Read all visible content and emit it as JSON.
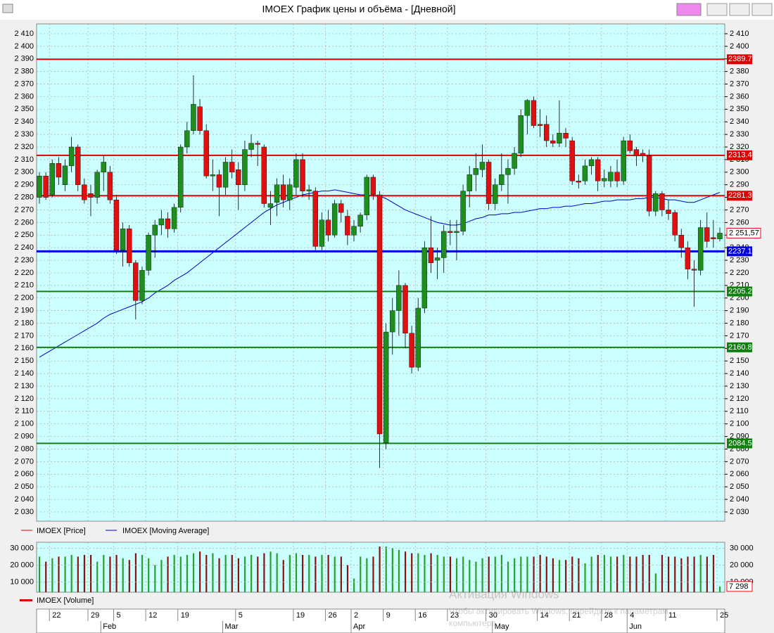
{
  "window_title": "IMOEX График цены и объёма - [Дневной]",
  "watermark": [
    "Активация Windows",
    "Чтобы активировать Windows, перейдите к параметрам",
    "компьютера."
  ],
  "chart_data": {
    "type": "candlestick",
    "price_name": "IMOEX [Price]",
    "price_color": "#e00000",
    "up_color": "#1e8f1e",
    "down_color": "#e01010",
    "grid": true,
    "ylim": [
      2022.7,
      2417.8
    ],
    "yticks": [
      {
        "value": 2030,
        "label": "2 030"
      },
      {
        "value": 2040,
        "label": "2 040"
      },
      {
        "value": 2050,
        "label": "2 050"
      },
      {
        "value": 2060,
        "label": "2 060"
      },
      {
        "value": 2070,
        "label": "2 070"
      },
      {
        "value": 2080,
        "label": "2 080"
      },
      {
        "value": 2090,
        "label": "2 090"
      },
      {
        "value": 2100,
        "label": "2 100"
      },
      {
        "value": 2110,
        "label": "2 110"
      },
      {
        "value": 2120,
        "label": "2 120"
      },
      {
        "value": 2130,
        "label": "2 130"
      },
      {
        "value": 2140,
        "label": "2 140"
      },
      {
        "value": 2150,
        "label": "2 150"
      },
      {
        "value": 2160,
        "label": "2 160"
      },
      {
        "value": 2170,
        "label": "2 170"
      },
      {
        "value": 2180,
        "label": "2 180"
      },
      {
        "value": 2190,
        "label": "2 190"
      },
      {
        "value": 2200,
        "label": "2 200"
      },
      {
        "value": 2210,
        "label": "2 210"
      },
      {
        "value": 2220,
        "label": "2 220"
      },
      {
        "value": 2230,
        "label": "2 230"
      },
      {
        "value": 2240,
        "label": "2 240"
      },
      {
        "value": 2250,
        "label": "2 250"
      },
      {
        "value": 2260,
        "label": "2 260"
      },
      {
        "value": 2270,
        "label": "2 270"
      },
      {
        "value": 2280,
        "label": "2 280"
      },
      {
        "value": 2290,
        "label": "2 290"
      },
      {
        "value": 2300,
        "label": "2 300"
      },
      {
        "value": 2310,
        "label": "2 310"
      },
      {
        "value": 2320,
        "label": "2 320"
      },
      {
        "value": 2330,
        "label": "2 330"
      },
      {
        "value": 2340,
        "label": "2 340"
      },
      {
        "value": 2350,
        "label": "2 350"
      },
      {
        "value": 2360,
        "label": "2 360"
      },
      {
        "value": 2370,
        "label": "2 370"
      },
      {
        "value": 2380,
        "label": "2 380"
      },
      {
        "value": 2390,
        "label": "2 390"
      },
      {
        "value": 2400,
        "label": "2 400"
      },
      {
        "value": 2410,
        "label": "2 410"
      }
    ],
    "levels": [
      {
        "value": 2389.7,
        "color": "#e00000"
      },
      {
        "value": 2313.4,
        "color": "#e00000"
      },
      {
        "value": 2281.3,
        "color": "#e00000"
      },
      {
        "value": 2237.1,
        "color": "#0000e0"
      },
      {
        "value": 2205.2,
        "color": "#108010"
      },
      {
        "value": 2160.8,
        "color": "#108010"
      },
      {
        "value": 2084.5,
        "color": "#108010"
      }
    ],
    "last_label": "2 251,57",
    "categories": [
      null,
      null,
      "22",
      null,
      null,
      null,
      null,
      null,
      "29",
      null,
      null,
      null,
      "5",
      null,
      null,
      null,
      null,
      "12",
      null,
      null,
      null,
      null,
      "19",
      null,
      null,
      null,
      null,
      null,
      null,
      null,
      null,
      "5",
      null,
      null,
      null,
      null,
      null,
      null,
      null,
      null,
      "19",
      null,
      null,
      null,
      null,
      "26",
      null,
      null,
      null,
      "2",
      null,
      null,
      null,
      null,
      "9",
      null,
      null,
      null,
      null,
      "16",
      null,
      null,
      null,
      null,
      "23",
      null,
      null,
      null,
      null,
      null,
      "30",
      null,
      null,
      null,
      null,
      null,
      null,
      null,
      "14",
      null,
      null,
      null,
      null,
      "21",
      null,
      null,
      null,
      null,
      "28",
      null,
      null,
      null,
      "4",
      null,
      null,
      null,
      null,
      null,
      "11",
      null,
      null,
      null,
      null,
      null,
      null,
      null,
      "25"
    ],
    "months": [
      null,
      null,
      null,
      null,
      null,
      null,
      null,
      null,
      null,
      null,
      "Feb",
      null,
      null,
      null,
      null,
      null,
      null,
      null,
      null,
      null,
      null,
      null,
      null,
      null,
      null,
      null,
      null,
      null,
      null,
      "Mar",
      null,
      null,
      null,
      null,
      null,
      null,
      null,
      null,
      null,
      null,
      null,
      null,
      null,
      null,
      null,
      null,
      null,
      null,
      null,
      "Apr",
      null,
      null,
      null,
      null,
      null,
      null,
      null,
      null,
      null,
      null,
      null,
      null,
      null,
      null,
      null,
      null,
      null,
      null,
      null,
      null,
      null,
      "May",
      null,
      null,
      null,
      null,
      null,
      null,
      null,
      null,
      null,
      null,
      null,
      null,
      null,
      null,
      null,
      null,
      null,
      null,
      null,
      null,
      "Jun",
      null,
      null,
      null,
      null,
      null,
      null,
      null,
      null,
      null,
      null,
      null,
      null,
      null,
      null,
      null
    ],
    "ohlc": [
      [
        2280,
        2300,
        2275,
        2297
      ],
      [
        2297,
        2300,
        2278,
        2280
      ],
      [
        2282,
        2310,
        2280,
        2307
      ],
      [
        2307,
        2312,
        2290,
        2296
      ],
      [
        2290,
        2310,
        2285,
        2305
      ],
      [
        2305,
        2328,
        2300,
        2320
      ],
      [
        2320,
        2322,
        2285,
        2290
      ],
      [
        2290,
        2295,
        2275,
        2278
      ],
      [
        2283,
        2290,
        2265,
        2280
      ],
      [
        2280,
        2302,
        2275,
        2300
      ],
      [
        2300,
        2313,
        2285,
        2308
      ],
      [
        2300,
        2305,
        2275,
        2278
      ],
      [
        2278,
        2282,
        2235,
        2238
      ],
      [
        2238,
        2260,
        2225,
        2255
      ],
      [
        2255,
        2258,
        2225,
        2228
      ],
      [
        2228,
        2230,
        2183,
        2198
      ],
      [
        2198,
        2225,
        2195,
        2222
      ],
      [
        2222,
        2252,
        2218,
        2250
      ],
      [
        2250,
        2262,
        2232,
        2258
      ],
      [
        2258,
        2270,
        2250,
        2263
      ],
      [
        2263,
        2268,
        2248,
        2255
      ],
      [
        2255,
        2275,
        2252,
        2272
      ],
      [
        2272,
        2322,
        2268,
        2320
      ],
      [
        2320,
        2340,
        2315,
        2333
      ],
      [
        2333,
        2377,
        2330,
        2354
      ],
      [
        2352,
        2358,
        2330,
        2333
      ],
      [
        2333,
        2338,
        2295,
        2297
      ],
      [
        2297,
        2310,
        2285,
        2298
      ],
      [
        2298,
        2302,
        2265,
        2288
      ],
      [
        2288,
        2312,
        2282,
        2308
      ],
      [
        2308,
        2318,
        2295,
        2300
      ],
      [
        2302,
        2308,
        2270,
        2290
      ],
      [
        2290,
        2325,
        2285,
        2318
      ],
      [
        2318,
        2330,
        2312,
        2323
      ],
      [
        2323,
        2325,
        2305,
        2322
      ],
      [
        2320,
        2322,
        2272,
        2275
      ],
      [
        2272,
        2285,
        2258,
        2275
      ],
      [
        2276,
        2295,
        2265,
        2290
      ],
      [
        2290,
        2298,
        2272,
        2278
      ],
      [
        2278,
        2295,
        2270,
        2290
      ],
      [
        2288,
        2315,
        2282,
        2310
      ],
      [
        2310,
        2315,
        2280,
        2285
      ],
      [
        2285,
        2290,
        2278,
        2286
      ],
      [
        2285,
        2288,
        2238,
        2241
      ],
      [
        2241,
        2268,
        2238,
        2262
      ],
      [
        2262,
        2270,
        2245,
        2250
      ],
      [
        2250,
        2278,
        2248,
        2275
      ],
      [
        2275,
        2278,
        2260,
        2268
      ],
      [
        2265,
        2270,
        2242,
        2250
      ],
      [
        2250,
        2262,
        2245,
        2257
      ],
      [
        2257,
        2268,
        2252,
        2266
      ],
      [
        2266,
        2298,
        2262,
        2296
      ],
      [
        2296,
        2298,
        2278,
        2282
      ],
      [
        2282,
        2285,
        2065,
        2092
      ],
      [
        2085,
        2180,
        2080,
        2173
      ],
      [
        2173,
        2200,
        2155,
        2190
      ],
      [
        2190,
        2222,
        2170,
        2210
      ],
      [
        2210,
        2212,
        2160,
        2172
      ],
      [
        2172,
        2178,
        2140,
        2145
      ],
      [
        2145,
        2200,
        2142,
        2192
      ],
      [
        2192,
        2245,
        2188,
        2240
      ],
      [
        2240,
        2265,
        2220,
        2228
      ],
      [
        2230,
        2240,
        2215,
        2232
      ],
      [
        2232,
        2258,
        2220,
        2253
      ],
      [
        2253,
        2262,
        2242,
        2252
      ],
      [
        2252,
        2262,
        2230,
        2253
      ],
      [
        2253,
        2290,
        2250,
        2285
      ],
      [
        2285,
        2305,
        2272,
        2298
      ],
      [
        2298,
        2315,
        2285,
        2303
      ],
      [
        2302,
        2322,
        2296,
        2308
      ],
      [
        2308,
        2310,
        2270,
        2275
      ],
      [
        2275,
        2295,
        2270,
        2290
      ],
      [
        2290,
        2315,
        2285,
        2298
      ],
      [
        2298,
        2310,
        2275,
        2303
      ],
      [
        2303,
        2320,
        2298,
        2315
      ],
      [
        2315,
        2350,
        2312,
        2345
      ],
      [
        2345,
        2358,
        2330,
        2357
      ],
      [
        2357,
        2360,
        2335,
        2337
      ],
      [
        2338,
        2350,
        2328,
        2337
      ],
      [
        2338,
        2345,
        2320,
        2325
      ],
      [
        2325,
        2330,
        2320,
        2323
      ],
      [
        2323,
        2357,
        2320,
        2331
      ],
      [
        2331,
        2335,
        2320,
        2327
      ],
      [
        2325,
        2328,
        2290,
        2293
      ],
      [
        2293,
        2298,
        2287,
        2292
      ],
      [
        2293,
        2310,
        2290,
        2305
      ],
      [
        2305,
        2312,
        2298,
        2310
      ],
      [
        2310,
        2312,
        2285,
        2293
      ],
      [
        2293,
        2302,
        2288,
        2295
      ],
      [
        2293,
        2305,
        2288,
        2300
      ],
      [
        2300,
        2310,
        2288,
        2293
      ],
      [
        2293,
        2328,
        2290,
        2325
      ],
      [
        2325,
        2330,
        2315,
        2317
      ],
      [
        2318,
        2320,
        2305,
        2313
      ],
      [
        2315,
        2318,
        2308,
        2313
      ],
      [
        2313,
        2318,
        2265,
        2269
      ],
      [
        2269,
        2285,
        2265,
        2283
      ],
      [
        2283,
        2285,
        2265,
        2270
      ],
      [
        2270,
        2278,
        2262,
        2267
      ],
      [
        2268,
        2270,
        2245,
        2250
      ],
      [
        2250,
        2255,
        2232,
        2240
      ],
      [
        2240,
        2245,
        2215,
        2223
      ],
      [
        2223,
        2230,
        2193,
        2222
      ],
      [
        2222,
        2262,
        2218,
        2256
      ],
      [
        2256,
        2268,
        2240,
        2245
      ],
      [
        2248,
        2262,
        2240,
        2247
      ],
      [
        2247,
        2256,
        2245,
        2251.57
      ]
    ],
    "series": [
      {
        "name": "IMOEX [Moving Average]",
        "color": "#0000c8",
        "values": [
          2153,
          2156,
          2159,
          2162,
          2165,
          2168,
          2171,
          2174,
          2177,
          2180,
          2184,
          2187,
          2189,
          2191,
          2193,
          2195,
          2197,
          2200,
          2204,
          2207,
          2210,
          2214,
          2217,
          2220,
          2224,
          2228,
          2232,
          2236,
          2240,
          2244,
          2248,
          2252,
          2256,
          2260,
          2264,
          2268,
          2271,
          2274,
          2276,
          2278,
          2280,
          2282,
          2283,
          2284,
          2285,
          2285,
          2286,
          2285,
          2284,
          2283,
          2282,
          2282,
          2281,
          2281,
          2279,
          2276,
          2273,
          2270,
          2268,
          2266,
          2264,
          2262,
          2260,
          2259,
          2258,
          2258,
          2259,
          2261,
          2263,
          2264,
          2266,
          2266,
          2267,
          2267,
          2268,
          2268,
          2269,
          2270,
          2271,
          2271,
          2272,
          2272,
          2273,
          2273,
          2274,
          2275,
          2275,
          2276,
          2277,
          2277,
          2278,
          2278,
          2278,
          2279,
          2279,
          2280,
          2280,
          2279,
          2278,
          2278,
          2277,
          2276,
          2276,
          2278,
          2280,
          2282,
          2284
        ]
      }
    ],
    "volume": {
      "name": "IMOEX [Volume]",
      "up_color": "#2aa02a",
      "down_color": "#8b1010",
      "ylim": [
        3900,
        33500
      ],
      "yticks": [
        {
          "value": 10000,
          "label": "10 000"
        },
        {
          "value": 20000,
          "label": "20 000"
        },
        {
          "value": 30000,
          "label": "30 000"
        }
      ],
      "last_label": "7 298",
      "values": [
        25000,
        22000,
        24000,
        25000,
        25000,
        26000,
        25000,
        26000,
        26000,
        22000,
        26000,
        25000,
        26000,
        24000,
        23000,
        27000,
        26000,
        24000,
        20000,
        23000,
        25000,
        26000,
        25000,
        26000,
        27000,
        28000,
        26000,
        27000,
        24000,
        26000,
        26000,
        24000,
        25000,
        26000,
        25000,
        27000,
        28000,
        27000,
        23000,
        26000,
        27000,
        26000,
        26000,
        25000,
        26000,
        26000,
        25000,
        25000,
        20000,
        12000,
        25000,
        24000,
        25000,
        31000,
        31000,
        30000,
        29000,
        28000,
        27000,
        27000,
        26000,
        27000,
        26000,
        25000,
        25000,
        24000,
        25000,
        23000,
        22000,
        24000,
        25000,
        25000,
        26000,
        22000,
        24000,
        25000,
        25000,
        25000,
        26000,
        25000,
        24000,
        23000,
        23000,
        25000,
        24000,
        21000,
        25000,
        26000,
        26000,
        25000,
        25000,
        26000,
        25000,
        25000,
        26000,
        26000,
        15000,
        26000,
        25000,
        25000,
        24000,
        25000,
        25000,
        26000,
        25000,
        26000,
        7298
      ]
    }
  }
}
